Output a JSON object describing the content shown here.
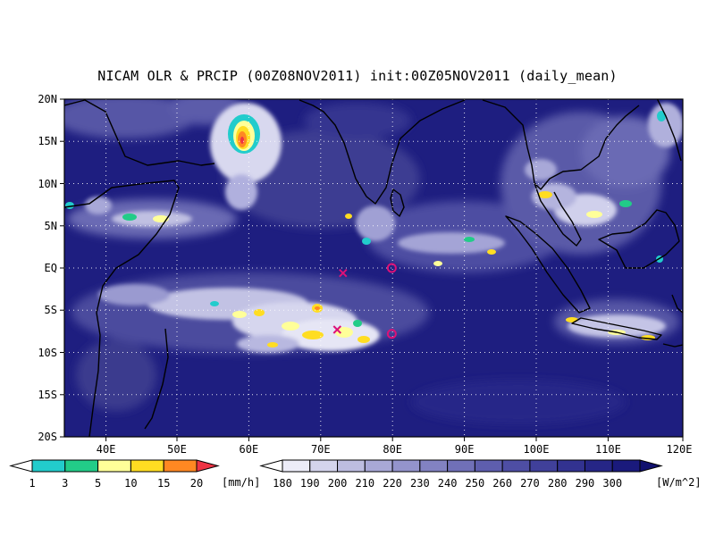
{
  "title": "NICAM OLR & PRCIP (00Z08NOV2011) init:00Z05NOV2011 (daily_mean)",
  "map": {
    "lat_labels": [
      "20N",
      "15N",
      "10N",
      "5N",
      "EQ",
      "5S",
      "10S",
      "15S",
      "20S"
    ],
    "lon_labels": [
      "40E",
      "50E",
      "60E",
      "70E",
      "80E",
      "90E",
      "100E",
      "110E",
      "120E"
    ],
    "lon_range": [
      35,
      120
    ],
    "lat_range": [
      -20,
      20
    ],
    "grid_lines": "dotted, every 10 degrees longitude and 5 degrees latitude",
    "markers": [
      {
        "symbol": "x",
        "lon": 73.3,
        "lat": -0.6,
        "color": "#dd1177"
      },
      {
        "symbol": "o",
        "lon": 80.0,
        "lat": 0.0,
        "color": "#dd1177"
      },
      {
        "symbol": "x",
        "lon": 72.5,
        "lat": -7.3,
        "color": "#dd1177"
      },
      {
        "symbol": "o",
        "lon": 80.0,
        "lat": -7.8,
        "color": "#dd1177"
      }
    ]
  },
  "precip_legend": {
    "labels": [
      "1",
      "3",
      "5",
      "10",
      "15",
      "20"
    ],
    "unit": "[mm/h]",
    "colors": [
      "#22cccc",
      "#22cc88",
      "#ffff99",
      "#ffdd22",
      "#ff8822",
      "#ee3344"
    ]
  },
  "olr_legend": {
    "labels": [
      "180",
      "190",
      "200",
      "210",
      "220",
      "230",
      "240",
      "250",
      "260",
      "270",
      "280",
      "290",
      "300"
    ],
    "unit": "[W/m^2]",
    "colors": [
      "#ececf8",
      "#d4d4ec",
      "#bdbde0",
      "#a8a8d6",
      "#9494cc",
      "#8282c2",
      "#7070b8",
      "#5e5eae",
      "#4e4ea4",
      "#40409a",
      "#323290",
      "#262686",
      "#1a1a7c",
      "#10106e"
    ]
  }
}
